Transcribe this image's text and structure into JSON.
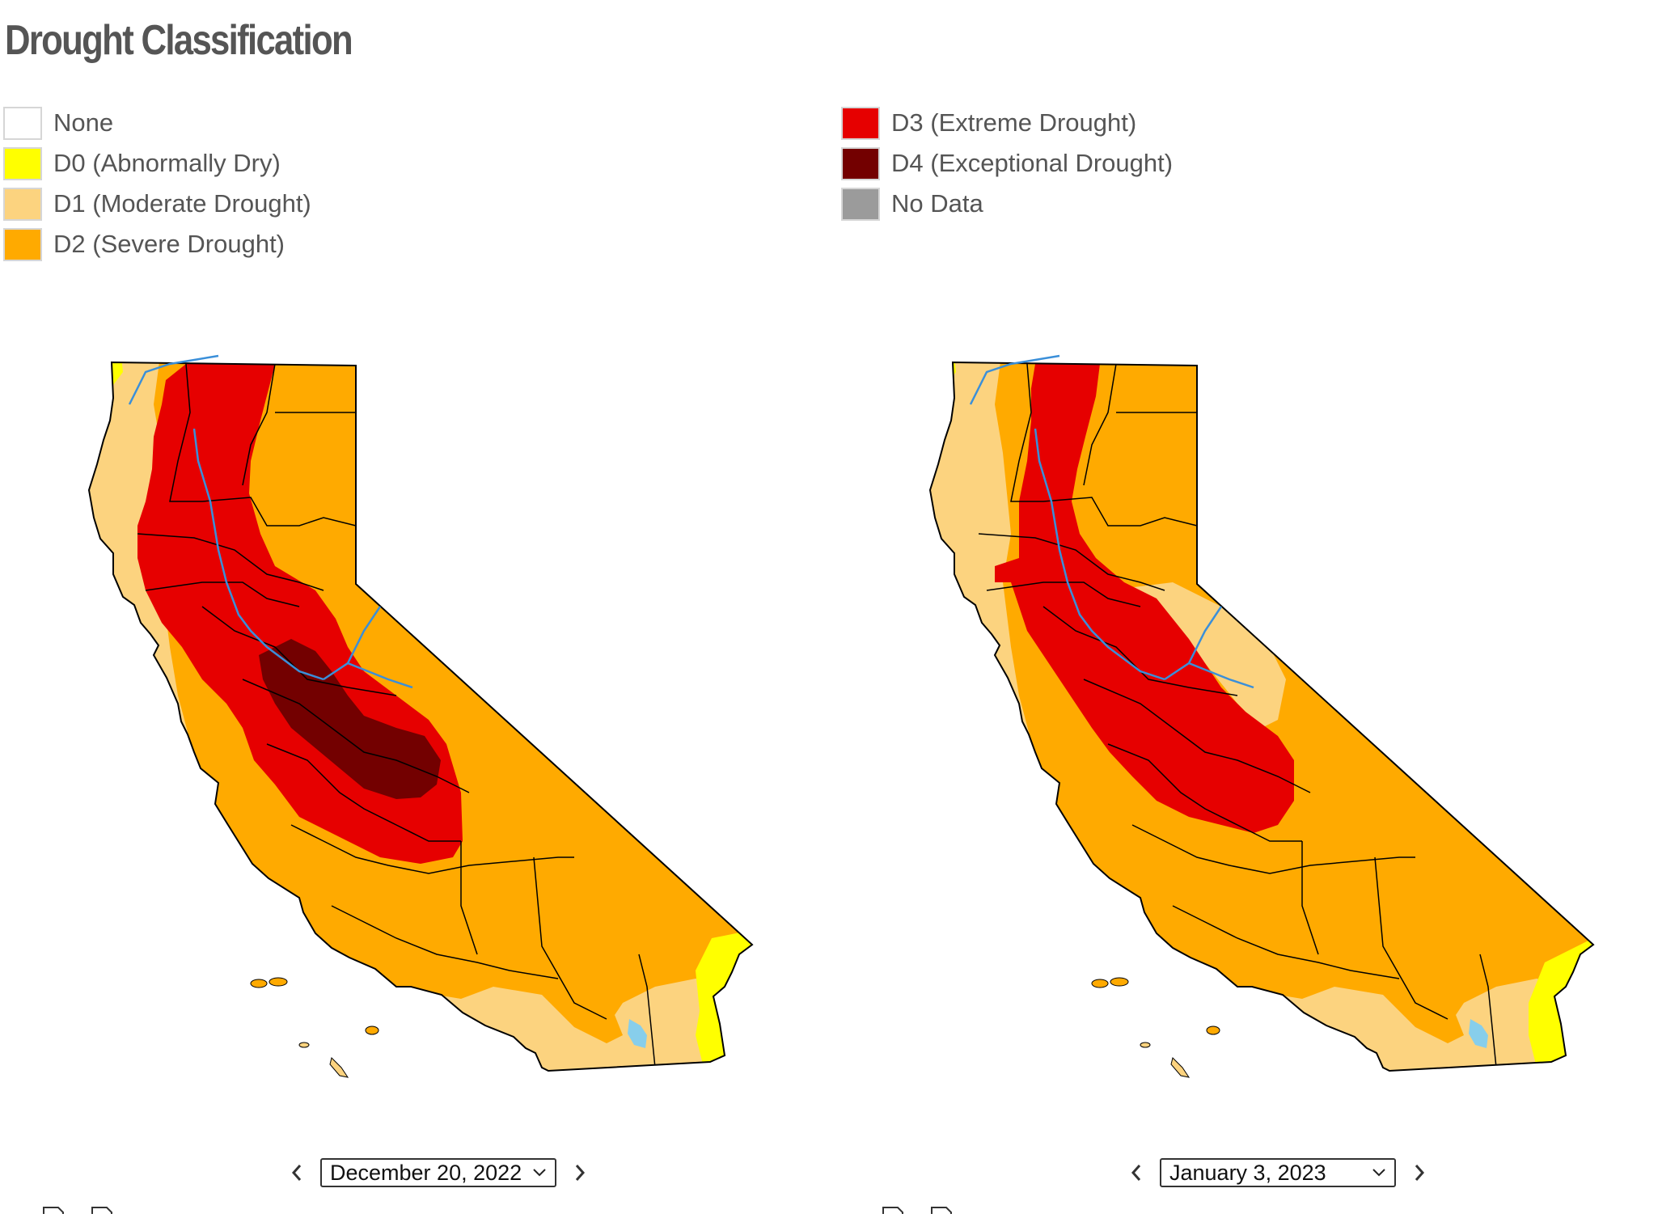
{
  "title": "Drought Classification",
  "legend": {
    "left": [
      {
        "label": "None",
        "color": "#ffffff"
      },
      {
        "label": "D0 (Abnormally Dry)",
        "color": "#ffff00"
      },
      {
        "label": "D1 (Moderate Drought)",
        "color": "#fcd37f"
      },
      {
        "label": "D2 (Severe Drought)",
        "color": "#ffaa00"
      }
    ],
    "right": [
      {
        "label": "D3 (Extreme Drought)",
        "color": "#e60000"
      },
      {
        "label": "D4 (Exceptional Drought)",
        "color": "#730000"
      },
      {
        "label": "No Data",
        "color": "#9b9b9b"
      }
    ]
  },
  "maps": {
    "left": {
      "date": "December 20, 2022",
      "prev_icon": "chevron-left-icon",
      "next_icon": "chevron-right-icon"
    },
    "right": {
      "date": "January 3, 2023",
      "prev_icon": "chevron-left-icon",
      "next_icon": "chevron-right-icon"
    }
  },
  "colors": {
    "none": "#ffffff",
    "d0": "#ffff00",
    "d1": "#fcd37f",
    "d2": "#ffaa00",
    "d3": "#e60000",
    "d4": "#730000",
    "nodata": "#9b9b9b",
    "water": "#87ceeb",
    "river": "#3a8fd9"
  }
}
